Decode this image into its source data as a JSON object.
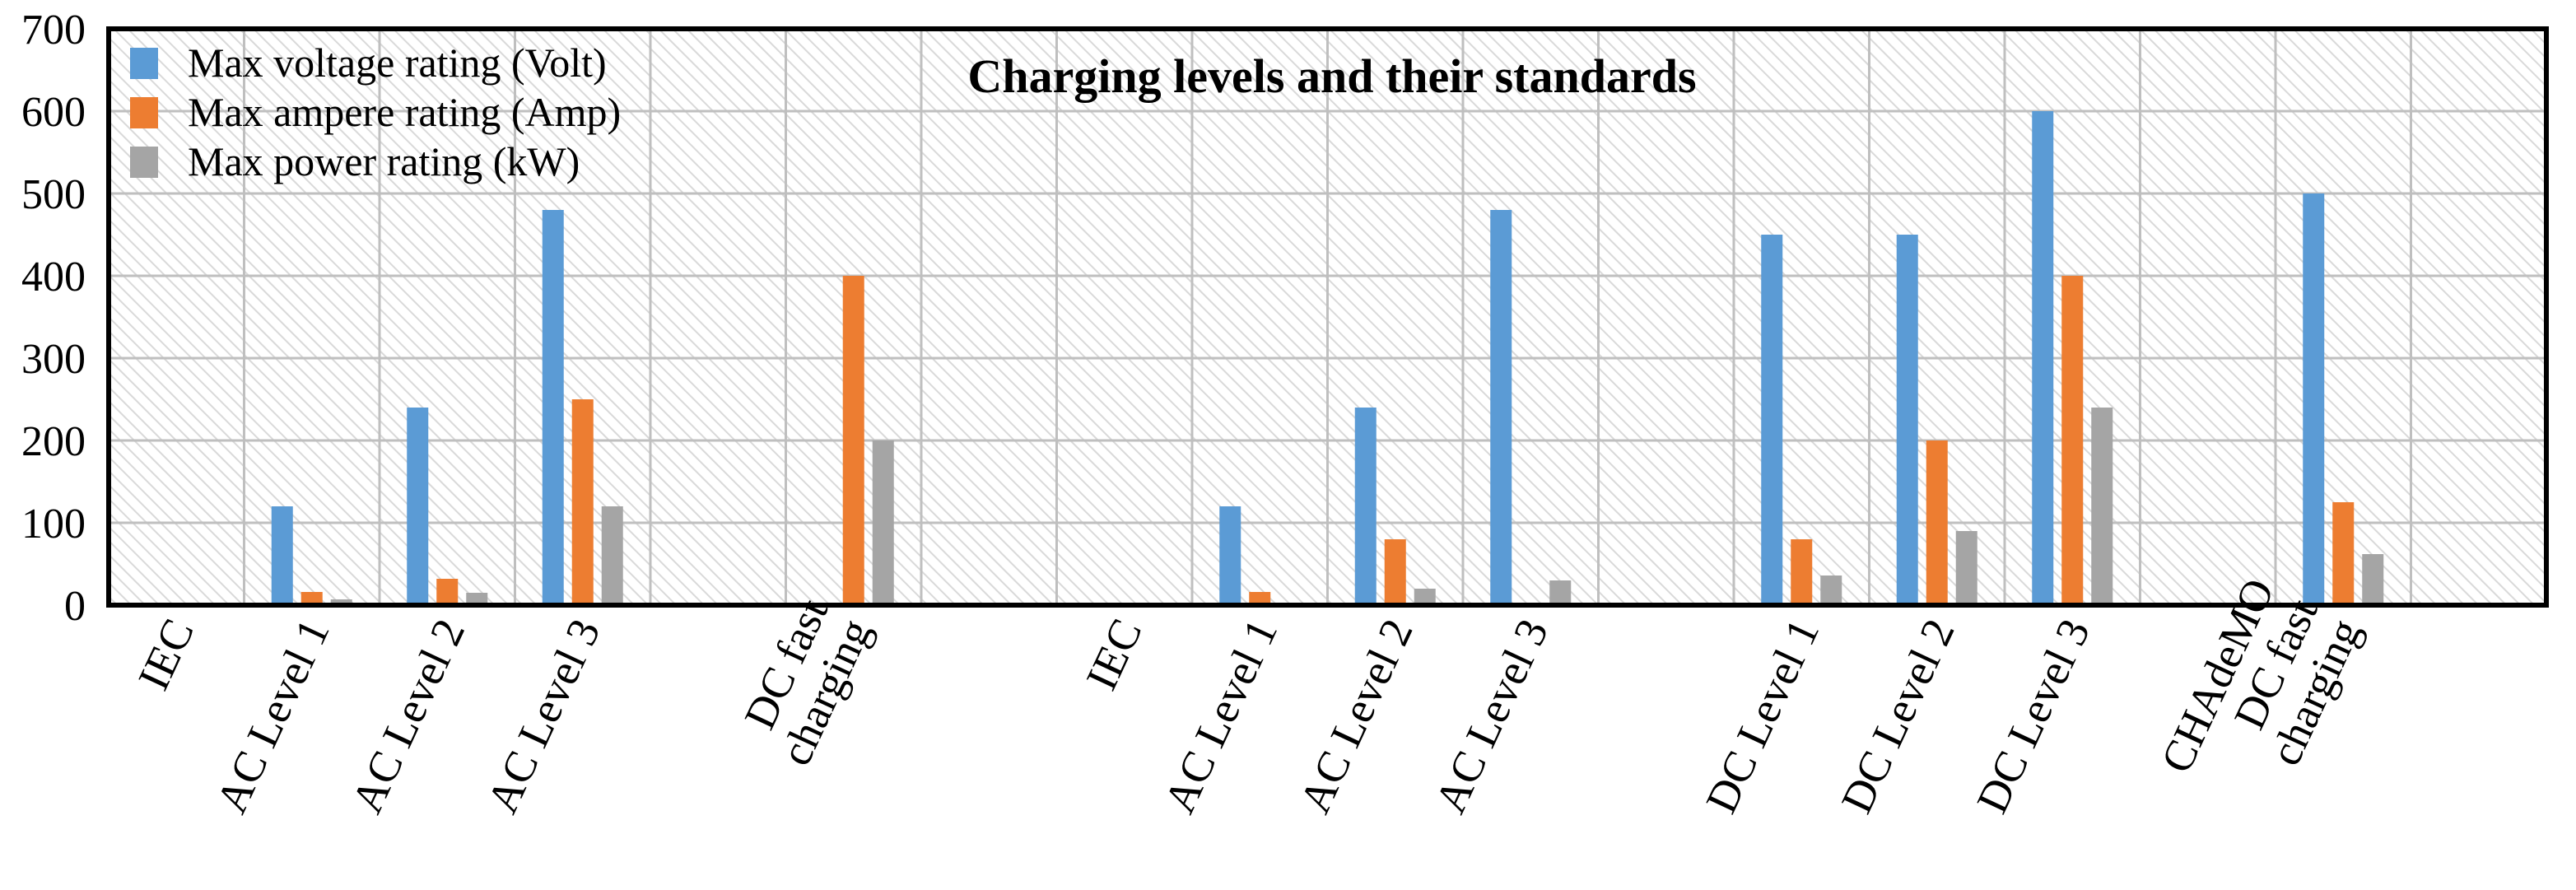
{
  "chart_data": {
    "type": "bar",
    "title": "Charging levels and their standards",
    "xlabel": "",
    "ylabel": "",
    "ylim": [
      0,
      700
    ],
    "yticks": [
      0,
      100,
      200,
      300,
      400,
      500,
      600,
      700
    ],
    "grid": true,
    "legend_position": "top-left",
    "categories": [
      [
        "IEC"
      ],
      [
        "AC Level 1"
      ],
      [
        "AC Level 2"
      ],
      [
        "AC Level 3"
      ],
      [],
      [
        "DC fast",
        "charging"
      ],
      [],
      [
        "IEC"
      ],
      [
        "AC Level 1"
      ],
      [
        "AC Level 2"
      ],
      [
        "AC Level 3"
      ],
      [],
      [
        "DC Level 1"
      ],
      [
        "DC Level 2"
      ],
      [
        "DC Level 3"
      ],
      [],
      [
        "CHAdeMO",
        "DC fast",
        "charging"
      ],
      []
    ],
    "series": [
      {
        "name": "Max voltage rating (Volt)",
        "color": "#5b9bd5",
        "values": [
          null,
          120,
          240,
          480,
          null,
          null,
          null,
          null,
          120,
          240,
          480,
          null,
          450,
          450,
          600,
          null,
          500,
          null
        ]
      },
      {
        "name": "Max ampere rating (Amp)",
        "color": "#ed7d31",
        "values": [
          null,
          16,
          32,
          250,
          null,
          400,
          null,
          null,
          16,
          80,
          null,
          null,
          80,
          200,
          400,
          null,
          125,
          null
        ]
      },
      {
        "name": "Max power rating (kW)",
        "color": "#a5a5a5",
        "values": [
          null,
          7,
          15,
          120,
          null,
          200,
          null,
          null,
          null,
          20,
          30,
          null,
          36,
          90,
          240,
          null,
          62,
          null
        ]
      }
    ]
  }
}
